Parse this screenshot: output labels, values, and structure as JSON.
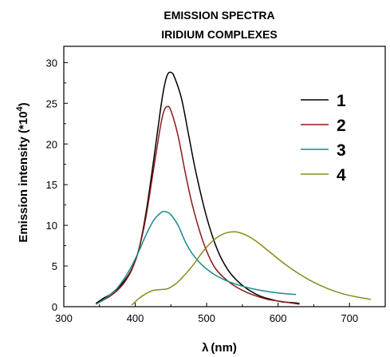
{
  "chart_data": {
    "type": "line",
    "title_line1": "EMISSION SPECTRA",
    "title_line2": "IRIDIUM COMPLEXES",
    "xlabel_symbol": "λ",
    "xlabel_unit": "(nm)",
    "ylabel_prefix": "Emission intensity (*10",
    "ylabel_exp": "4",
    "ylabel_suffix": ")",
    "xlim": [
      300,
      750
    ],
    "ylim": [
      0,
      32
    ],
    "xticks": [
      300,
      400,
      500,
      600,
      700
    ],
    "yticks": [
      0,
      5,
      10,
      15,
      20,
      25,
      30
    ],
    "legend_position": "top-right",
    "series": [
      {
        "name": "1",
        "color": "#000000",
        "x": [
          345,
          355,
          365,
          375,
          385,
          395,
          405,
          415,
          425,
          435,
          440,
          445,
          450,
          455,
          465,
          475,
          485,
          500,
          515,
          530,
          545,
          560,
          575,
          590,
          605,
          620,
          630
        ],
        "y": [
          0.4,
          1.0,
          1.5,
          2.2,
          3.2,
          4.6,
          7.0,
          11.5,
          17.5,
          24.0,
          26.8,
          28.5,
          28.8,
          28.2,
          25.5,
          21.0,
          16.5,
          11.0,
          7.0,
          4.5,
          3.0,
          2.0,
          1.3,
          0.9,
          0.6,
          0.5,
          0.4
        ]
      },
      {
        "name": "2",
        "color": "#8b1a1a",
        "x": [
          345,
          355,
          365,
          375,
          385,
          395,
          405,
          415,
          425,
          435,
          440,
          445,
          450,
          460,
          470,
          480,
          495,
          510,
          525,
          540,
          555,
          570,
          585,
          600,
          615,
          630
        ],
        "y": [
          0.3,
          0.8,
          1.3,
          2.0,
          3.0,
          4.5,
          7.0,
          11.0,
          16.5,
          22.0,
          24.0,
          24.6,
          24.1,
          21.0,
          16.5,
          12.5,
          8.0,
          5.0,
          3.5,
          2.5,
          1.8,
          1.3,
          0.9,
          0.7,
          0.5,
          0.3
        ]
      },
      {
        "name": "3",
        "color": "#1a8b8b",
        "x": [
          345,
          355,
          365,
          375,
          385,
          395,
          405,
          415,
          425,
          435,
          440,
          445,
          450,
          460,
          470,
          480,
          495,
          510,
          525,
          540,
          555,
          570,
          590,
          610,
          625
        ],
        "y": [
          0.3,
          0.8,
          1.5,
          2.3,
          3.5,
          5.0,
          6.8,
          8.8,
          10.5,
          11.5,
          11.7,
          11.6,
          11.3,
          10.0,
          8.0,
          6.5,
          5.0,
          4.0,
          3.3,
          2.8,
          2.4,
          2.1,
          1.8,
          1.6,
          1.5
        ]
      },
      {
        "name": "4",
        "color": "#8b8b1a",
        "x": [
          395,
          405,
          415,
          425,
          435,
          445,
          455,
          465,
          480,
          495,
          510,
          525,
          540,
          555,
          570,
          590,
          610,
          630,
          650,
          670,
          690,
          710,
          730
        ],
        "y": [
          0.2,
          1.0,
          1.6,
          2.0,
          2.1,
          2.2,
          2.7,
          3.5,
          5.0,
          6.8,
          8.2,
          9.0,
          9.2,
          8.8,
          8.0,
          6.6,
          5.2,
          4.0,
          3.0,
          2.2,
          1.6,
          1.2,
          0.9
        ]
      }
    ]
  }
}
